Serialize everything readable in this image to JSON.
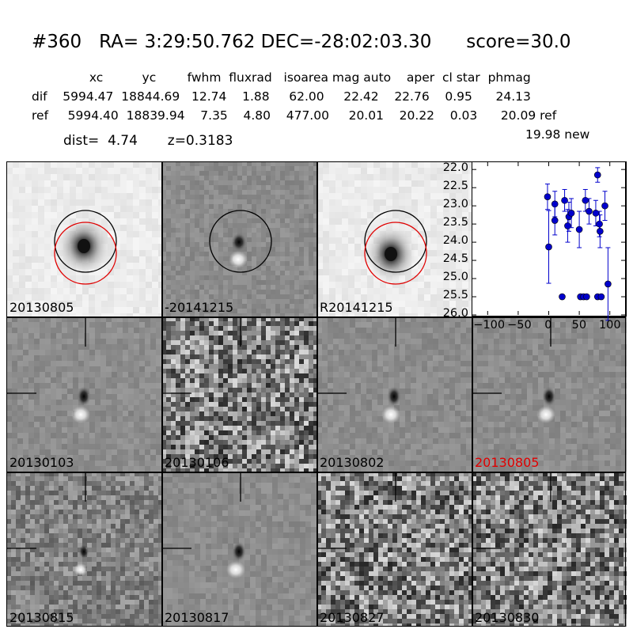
{
  "header": {
    "title": "#360   RA= 3:29:50.762 DEC=-28:02:03.30      score=30.0",
    "columns_line": "  xc          yc        fwhm  fluxrad   isoarea mag auto    aper  cl star  phmag",
    "dif_line": "dif    5994.47  18844.69   12.74    1.88     62.00     22.42    22.76    0.95      24.13",
    "ref_line": "ref     5994.40  18839.94    7.35    4.80    477.00     20.01    20.22    0.03      20.09 ref",
    "new_line": "19.98 new",
    "dist_line": "dist=  4.74       z=0.3183"
  },
  "panels": [
    {
      "label": "20130805",
      "kind": "stamp-light",
      "circles": [
        "black",
        "red"
      ]
    },
    {
      "label": "-20141215",
      "kind": "stamp-diff",
      "circles": [
        "black"
      ]
    },
    {
      "label": "R20141215",
      "kind": "stamp-light-dark",
      "circles": [
        "black",
        "red"
      ]
    },
    {
      "label": "20130103",
      "kind": "diff",
      "noise": "low"
    },
    {
      "label": "20130106",
      "kind": "noise",
      "noise": "high"
    },
    {
      "label": "20130802",
      "kind": "diff",
      "noise": "low"
    },
    {
      "label": "20130805",
      "kind": "diff",
      "noise": "low",
      "highlight": true,
      "highlight_color": "#e00000"
    },
    {
      "label": "20130815",
      "kind": "diff-weak",
      "noise": "medium"
    },
    {
      "label": "20130817",
      "kind": "diff",
      "noise": "low"
    },
    {
      "label": "20130827",
      "kind": "noise",
      "noise": "high"
    },
    {
      "label": "20130830",
      "kind": "noise",
      "noise": "high"
    }
  ],
  "chart_data": {
    "type": "scatter",
    "title": "",
    "xlabel": "",
    "ylabel": "",
    "xlim": [
      -125,
      125
    ],
    "ylim": [
      26.0,
      21.8
    ],
    "y_inverted": true,
    "xticks": [
      -100,
      -50,
      0,
      50,
      100
    ],
    "xtick_labels": [
      "−100",
      "−50",
      "0",
      "50",
      "100"
    ],
    "yticks": [
      22.0,
      22.5,
      23.0,
      23.5,
      24.0,
      24.5,
      25.0,
      25.5,
      26.0
    ],
    "ytick_labels": [
      "22.0",
      "22.5",
      "23.0",
      "23.5",
      "24.0",
      "24.5",
      "25.0",
      "25.5",
      "26.0"
    ],
    "color": "#0000cc",
    "points": [
      {
        "x": -2,
        "y": 22.75,
        "err": 0.35
      },
      {
        "x": 0,
        "y": 24.13,
        "err": 1.0
      },
      {
        "x": 10,
        "y": 22.95,
        "err": 0.35
      },
      {
        "x": 10,
        "y": 23.4,
        "err": 0.4
      },
      {
        "x": 22,
        "y": 25.5,
        "err": 0.05
      },
      {
        "x": 26,
        "y": 22.85,
        "err": 0.3
      },
      {
        "x": 31,
        "y": 23.55,
        "err": 0.45
      },
      {
        "x": 33,
        "y": 23.3,
        "err": 0.4
      },
      {
        "x": 37,
        "y": 23.2,
        "err": 0.4
      },
      {
        "x": 50,
        "y": 23.65,
        "err": 0.5
      },
      {
        "x": 52,
        "y": 25.5,
        "err": 0.05
      },
      {
        "x": 57,
        "y": 25.5,
        "err": 0.05
      },
      {
        "x": 62,
        "y": 25.5,
        "err": 0.05
      },
      {
        "x": 60,
        "y": 22.85,
        "err": 0.3
      },
      {
        "x": 66,
        "y": 23.15,
        "err": 0.35
      },
      {
        "x": 77,
        "y": 23.2,
        "err": 0.35
      },
      {
        "x": 80,
        "y": 22.15,
        "err": 0.2
      },
      {
        "x": 80,
        "y": 25.5,
        "err": 0.05
      },
      {
        "x": 83,
        "y": 23.5,
        "err": 0.35
      },
      {
        "x": 84,
        "y": 23.7,
        "err": 0.45
      },
      {
        "x": 86,
        "y": 25.5,
        "err": 0.05
      },
      {
        "x": 92,
        "y": 23.0,
        "err": 0.4
      },
      {
        "x": 97,
        "y": 25.15,
        "err": 1.0
      }
    ]
  }
}
